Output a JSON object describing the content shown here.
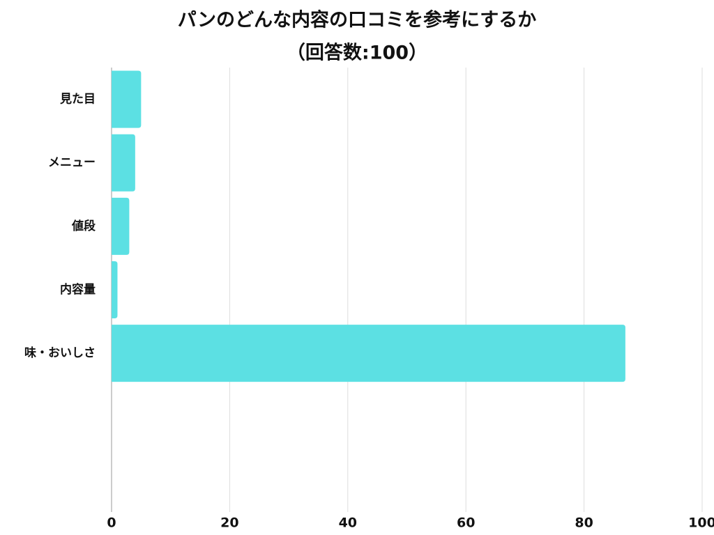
{
  "chart_data": {
    "type": "bar",
    "orientation": "horizontal",
    "title": "パンのどんな内容の口コミを参考にするか",
    "subtitle": "（回答数:100）",
    "categories": [
      "見た目",
      "メニュー",
      "値段",
      "内容量",
      "味・おいしさ",
      null,
      null
    ],
    "values": [
      5,
      4,
      3,
      1,
      87,
      null,
      null
    ],
    "color": "#5ce0e3",
    "xlim": [
      0,
      100
    ],
    "xticks": [
      0,
      20,
      40,
      60,
      80,
      100
    ],
    "grid": true
  }
}
